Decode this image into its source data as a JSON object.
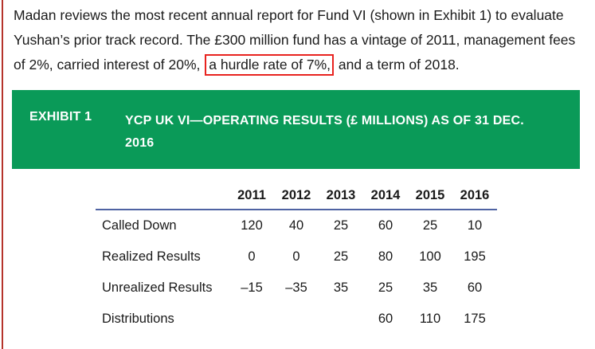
{
  "intro": {
    "before": "Madan reviews the most recent annual report for Fund VI (shown in Exhibit 1) to evaluate Yushan’s prior track record. The £300 million fund has a vintage of 2011, management fees of 2%, carried interest of 20%,",
    "highlight": "a hurdle rate of 7%,",
    "after": "and a term of 2018."
  },
  "exhibit": {
    "number": "EXHIBIT 1",
    "title": "YCP UK VI—OPERATING RESULTS (£ MILLIONS) AS OF 31 DEC. 2016"
  },
  "table": {
    "corner": "",
    "years": [
      "2011",
      "2012",
      "2013",
      "2014",
      "2015",
      "2016"
    ],
    "rows": [
      {
        "label": "Called Down",
        "values": [
          "120",
          "40",
          "25",
          "60",
          "25",
          "10"
        ]
      },
      {
        "label": "Realized Results",
        "values": [
          "0",
          "0",
          "25",
          "80",
          "100",
          "195"
        ]
      },
      {
        "label": "Unrealized Results",
        "values": [
          "–15",
          "–35",
          "35",
          "25",
          "35",
          "60"
        ]
      },
      {
        "label": "Distributions",
        "values": [
          "",
          "",
          "",
          "60",
          "110",
          "175"
        ]
      }
    ]
  },
  "colors": {
    "banner": "#0a9a58",
    "highlight_border": "#e8231f",
    "header_rule": "#4f63a3",
    "left_rule": "#b5342b"
  }
}
